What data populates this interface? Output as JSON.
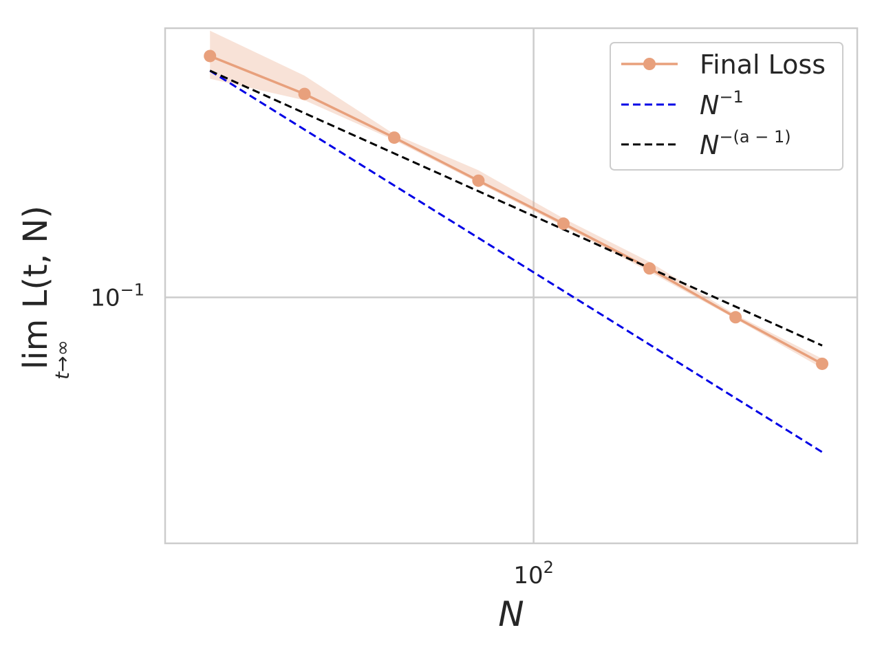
{
  "chart_data": {
    "type": "line",
    "xscale": "log",
    "yscale": "log",
    "xlim": [
      16,
      500
    ],
    "ylim": [
      0.0283,
      0.398
    ],
    "grid": true,
    "legend_position": "top-right",
    "xlabel": "N",
    "ylabel_main": "lim L(t, N)",
    "ylabel_sub": "t→∞",
    "x_ticks": [
      {
        "value": 100,
        "base": "10",
        "exp": "2"
      }
    ],
    "y_ticks": [
      {
        "value": 0.1,
        "base": "10",
        "exp": "−1"
      }
    ],
    "series": [
      {
        "name": "Final Loss",
        "style": "line-marker",
        "color": "#E8A07C",
        "x": [
          20,
          32,
          50,
          76,
          116,
          178,
          273,
          420
        ],
        "y": [
          0.345,
          0.284,
          0.227,
          0.182,
          0.146,
          0.116,
          0.0903,
          0.0711
        ],
        "band_lower": [
          0.307,
          0.275,
          0.224,
          0.18,
          0.144,
          0.114,
          0.0895,
          0.0695
        ],
        "band_upper": [
          0.393,
          0.312,
          0.231,
          0.192,
          0.15,
          0.12,
          0.0915,
          0.073
        ]
      },
      {
        "name": "N^-1",
        "legend_base": "N",
        "legend_exp": "−1",
        "style": "dashed",
        "color": "#0000E6",
        "x": [
          20,
          420
        ],
        "y": [
          0.32,
          0.0452
        ]
      },
      {
        "name": "N^-(a-1)",
        "legend_base": "N",
        "legend_exp": "−(a − 1)",
        "style": "dashed",
        "color": "#000000",
        "x": [
          20,
          420
        ],
        "y": [
          0.32,
          0.0781
        ]
      }
    ]
  }
}
